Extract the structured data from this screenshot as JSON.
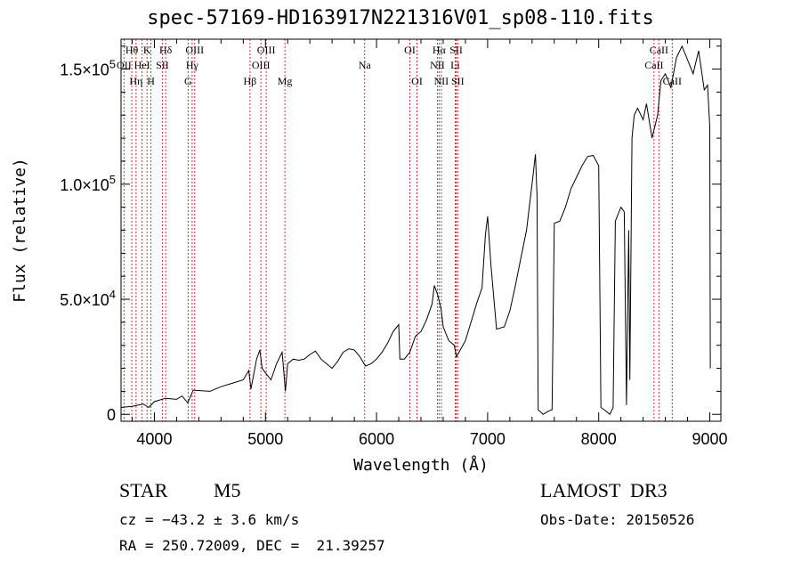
{
  "chart_data": {
    "type": "line",
    "title": "spec-57169-HD163917N221316V01_sp08-110.fits",
    "xlabel": "Wavelength (Å)",
    "ylabel": "Flux (relative)",
    "xlim": [
      3700,
      9100
    ],
    "ylim": [
      -3000,
      163000
    ],
    "xticks": [
      4000,
      5000,
      6000,
      7000,
      8000,
      9000
    ],
    "xtick_labels": [
      "4000",
      "5000",
      "6000",
      "7000",
      "8000",
      "9000"
    ],
    "yticks": [
      0,
      50000,
      100000,
      150000
    ],
    "ytick_labels": [
      {
        "mant": "0",
        "exp": ""
      },
      {
        "mant": "5.0×10",
        "exp": "4"
      },
      {
        "mant": "1.0×10",
        "exp": "5"
      },
      {
        "mant": "1.5×10",
        "exp": "5"
      }
    ],
    "grid": false,
    "lines": [
      {
        "label": "Hθ",
        "wave": 3797,
        "row": 0
      },
      {
        "label": "OII",
        "wave": 3727,
        "row": 1
      },
      {
        "label": "Hη",
        "wave": 3835,
        "row": 2
      },
      {
        "label": "HeI",
        "wave": 3889,
        "row": 1
      },
      {
        "label": "K",
        "wave": 3934,
        "row": 0
      },
      {
        "label": "H",
        "wave": 3969,
        "row": 2
      },
      {
        "label": "SII",
        "wave": 4072,
        "row": 1
      },
      {
        "label": "Hδ",
        "wave": 4102,
        "row": 0
      },
      {
        "label": "OIII",
        "wave": 4363,
        "row": 0
      },
      {
        "label": "Hγ",
        "wave": 4340,
        "row": 1
      },
      {
        "label": "G",
        "wave": 4304,
        "row": 2
      },
      {
        "label": "Hβ",
        "wave": 4861,
        "row": 2
      },
      {
        "label": "OIII",
        "wave": 5007,
        "row": 0
      },
      {
        "label": "OIII",
        "wave": 4959,
        "row": 1
      },
      {
        "label": "Mg",
        "wave": 5175,
        "row": 2
      },
      {
        "label": "Na",
        "wave": 5893,
        "row": 1
      },
      {
        "label": "OI",
        "wave": 6300,
        "row": 0
      },
      {
        "label": "OI",
        "wave": 6364,
        "row": 2
      },
      {
        "label": "Hα",
        "wave": 6563,
        "row": 0
      },
      {
        "label": "NII",
        "wave": 6548,
        "row": 1
      },
      {
        "label": "NII",
        "wave": 6583,
        "row": 2
      },
      {
        "label": "SII",
        "wave": 6717,
        "row": 0
      },
      {
        "label": "Li",
        "wave": 6708,
        "row": 1
      },
      {
        "label": "SII",
        "wave": 6731,
        "row": 2
      },
      {
        "label": "CaII",
        "wave": 8542,
        "row": 0
      },
      {
        "label": "CaII",
        "wave": 8498,
        "row": 1
      },
      {
        "label": "CaII",
        "wave": 8662,
        "row": 2
      }
    ],
    "series": [
      {
        "name": "spectrum",
        "points": [
          [
            3700,
            3000
          ],
          [
            3800,
            3500
          ],
          [
            3900,
            4500
          ],
          [
            3950,
            3000
          ],
          [
            4000,
            5500
          ],
          [
            4100,
            7000
          ],
          [
            4200,
            6500
          ],
          [
            4250,
            8000
          ],
          [
            4300,
            5000
          ],
          [
            4350,
            10500
          ],
          [
            4500,
            10000
          ],
          [
            4600,
            12000
          ],
          [
            4700,
            13500
          ],
          [
            4800,
            15000
          ],
          [
            4850,
            19000
          ],
          [
            4870,
            11000
          ],
          [
            4920,
            24000
          ],
          [
            4950,
            28000
          ],
          [
            4970,
            20000
          ],
          [
            5000,
            18000
          ],
          [
            5050,
            15000
          ],
          [
            5100,
            22000
          ],
          [
            5150,
            27000
          ],
          [
            5180,
            10000
          ],
          [
            5200,
            22000
          ],
          [
            5250,
            24000
          ],
          [
            5300,
            23500
          ],
          [
            5350,
            24000
          ],
          [
            5400,
            26000
          ],
          [
            5450,
            27500
          ],
          [
            5500,
            24000
          ],
          [
            5550,
            22000
          ],
          [
            5600,
            20000
          ],
          [
            5650,
            23000
          ],
          [
            5700,
            27000
          ],
          [
            5750,
            28500
          ],
          [
            5800,
            28000
          ],
          [
            5850,
            25000
          ],
          [
            5900,
            21000
          ],
          [
            5950,
            22000
          ],
          [
            6000,
            24000
          ],
          [
            6050,
            27000
          ],
          [
            6100,
            31000
          ],
          [
            6150,
            36000
          ],
          [
            6200,
            39000
          ],
          [
            6210,
            24000
          ],
          [
            6250,
            24000
          ],
          [
            6300,
            27000
          ],
          [
            6350,
            34000
          ],
          [
            6400,
            36000
          ],
          [
            6450,
            41000
          ],
          [
            6500,
            48000
          ],
          [
            6520,
            56000
          ],
          [
            6550,
            52000
          ],
          [
            6580,
            46000
          ],
          [
            6600,
            38000
          ],
          [
            6650,
            32000
          ],
          [
            6700,
            30000
          ],
          [
            6720,
            25000
          ],
          [
            6800,
            32000
          ],
          [
            6850,
            40000
          ],
          [
            6900,
            48000
          ],
          [
            6950,
            55000
          ],
          [
            6980,
            78000
          ],
          [
            7000,
            86000
          ],
          [
            7030,
            65000
          ],
          [
            7080,
            37000
          ],
          [
            7150,
            38000
          ],
          [
            7200,
            45000
          ],
          [
            7250,
            56000
          ],
          [
            7300,
            68000
          ],
          [
            7350,
            80000
          ],
          [
            7400,
            100000
          ],
          [
            7430,
            113000
          ],
          [
            7445,
            95000
          ],
          [
            7455,
            2000
          ],
          [
            7500,
            0
          ],
          [
            7550,
            1500
          ],
          [
            7580,
            2000
          ],
          [
            7600,
            83000
          ],
          [
            7650,
            84000
          ],
          [
            7700,
            90000
          ],
          [
            7750,
            98000
          ],
          [
            7800,
            103000
          ],
          [
            7850,
            108000
          ],
          [
            7900,
            112000
          ],
          [
            7950,
            112500
          ],
          [
            8000,
            108000
          ],
          [
            8020,
            3000
          ],
          [
            8050,
            2000
          ],
          [
            8100,
            0
          ],
          [
            8130,
            3000
          ],
          [
            8150,
            84000
          ],
          [
            8200,
            90000
          ],
          [
            8230,
            88000
          ],
          [
            8250,
            4000
          ],
          [
            8270,
            80000
          ],
          [
            8280,
            15000
          ],
          [
            8300,
            120000
          ],
          [
            8320,
            130000
          ],
          [
            8350,
            133000
          ],
          [
            8400,
            128000
          ],
          [
            8430,
            135000
          ],
          [
            8480,
            120000
          ],
          [
            8530,
            130000
          ],
          [
            8560,
            145000
          ],
          [
            8600,
            148000
          ],
          [
            8650,
            142000
          ],
          [
            8700,
            155000
          ],
          [
            8750,
            160000
          ],
          [
            8800,
            154000
          ],
          [
            8850,
            148000
          ],
          [
            8900,
            158000
          ],
          [
            8950,
            141000
          ],
          [
            8980,
            143000
          ],
          [
            9000,
            125000
          ],
          [
            9005,
            20000
          ]
        ]
      }
    ]
  },
  "info": {
    "object_class": "STAR",
    "subclass": "M5",
    "survey": "LAMOST  DR3",
    "cz": "cz = −43.2 ± 3.6 km/s",
    "obs_date": "Obs-Date: 20150526",
    "coords": "RA = 250.72009, DEC =  21.39257"
  },
  "colors": {
    "axis": "#000000",
    "spectrum": "#000000",
    "line_marker": "#d43030",
    "background": "#ffffff"
  }
}
